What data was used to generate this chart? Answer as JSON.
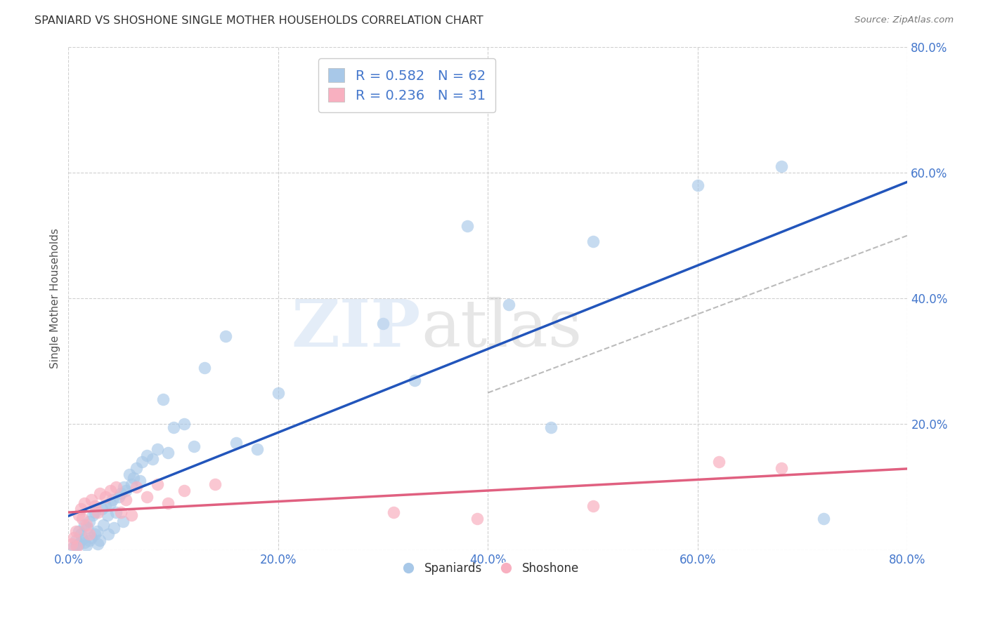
{
  "title": "SPANIARD VS SHOSHONE SINGLE MOTHER HOUSEHOLDS CORRELATION CHART",
  "source": "Source: ZipAtlas.com",
  "ylabel": "Single Mother Households",
  "xlim": [
    0.0,
    0.8
  ],
  "ylim": [
    0.0,
    0.8
  ],
  "xticks": [
    0.0,
    0.2,
    0.4,
    0.6,
    0.8
  ],
  "yticks": [
    0.0,
    0.2,
    0.4,
    0.6,
    0.8
  ],
  "xticklabels": [
    "0.0%",
    "20.0%",
    "40.0%",
    "60.0%",
    "80.0%"
  ],
  "yticklabels": [
    "",
    "20.0%",
    "40.0%",
    "60.0%",
    "80.0%"
  ],
  "legend_label_blue": "Spaniards",
  "legend_label_pink": "Shoshone",
  "blue_color": "#a8c8e8",
  "blue_line_color": "#2255bb",
  "pink_color": "#f8b0c0",
  "pink_line_color": "#e06080",
  "dashed_line_color": "#aaaaaa",
  "grid_color": "#d0d0d0",
  "title_color": "#333333",
  "axis_label_color": "#4477cc",
  "spaniards_x": [
    0.005,
    0.007,
    0.008,
    0.01,
    0.01,
    0.012,
    0.013,
    0.015,
    0.015,
    0.017,
    0.018,
    0.02,
    0.02,
    0.022,
    0.023,
    0.025,
    0.025,
    0.027,
    0.028,
    0.03,
    0.032,
    0.033,
    0.035,
    0.037,
    0.038,
    0.04,
    0.042,
    0.043,
    0.045,
    0.048,
    0.05,
    0.052,
    0.053,
    0.055,
    0.058,
    0.06,
    0.062,
    0.065,
    0.068,
    0.07,
    0.075,
    0.08,
    0.085,
    0.09,
    0.095,
    0.1,
    0.11,
    0.12,
    0.13,
    0.15,
    0.16,
    0.18,
    0.2,
    0.3,
    0.33,
    0.38,
    0.42,
    0.46,
    0.5,
    0.6,
    0.68,
    0.72
  ],
  "spaniards_y": [
    0.005,
    0.015,
    0.008,
    0.01,
    0.03,
    0.025,
    0.018,
    0.012,
    0.04,
    0.008,
    0.035,
    0.015,
    0.045,
    0.02,
    0.055,
    0.025,
    0.06,
    0.03,
    0.01,
    0.015,
    0.065,
    0.04,
    0.07,
    0.055,
    0.025,
    0.075,
    0.08,
    0.035,
    0.06,
    0.085,
    0.09,
    0.045,
    0.1,
    0.095,
    0.12,
    0.105,
    0.115,
    0.13,
    0.11,
    0.14,
    0.15,
    0.145,
    0.16,
    0.24,
    0.155,
    0.195,
    0.2,
    0.165,
    0.29,
    0.34,
    0.17,
    0.16,
    0.25,
    0.36,
    0.27,
    0.515,
    0.39,
    0.195,
    0.49,
    0.58,
    0.61,
    0.05
  ],
  "shoshone_x": [
    0.003,
    0.005,
    0.007,
    0.008,
    0.01,
    0.012,
    0.013,
    0.015,
    0.017,
    0.02,
    0.022,
    0.025,
    0.028,
    0.03,
    0.035,
    0.04,
    0.045,
    0.05,
    0.055,
    0.06,
    0.065,
    0.075,
    0.085,
    0.095,
    0.11,
    0.14,
    0.31,
    0.39,
    0.5,
    0.62,
    0.68
  ],
  "shoshone_y": [
    0.01,
    0.02,
    0.03,
    0.005,
    0.055,
    0.065,
    0.05,
    0.075,
    0.04,
    0.025,
    0.08,
    0.07,
    0.06,
    0.09,
    0.085,
    0.095,
    0.1,
    0.06,
    0.08,
    0.055,
    0.1,
    0.085,
    0.105,
    0.075,
    0.095,
    0.105,
    0.06,
    0.05,
    0.07,
    0.14,
    0.13
  ]
}
